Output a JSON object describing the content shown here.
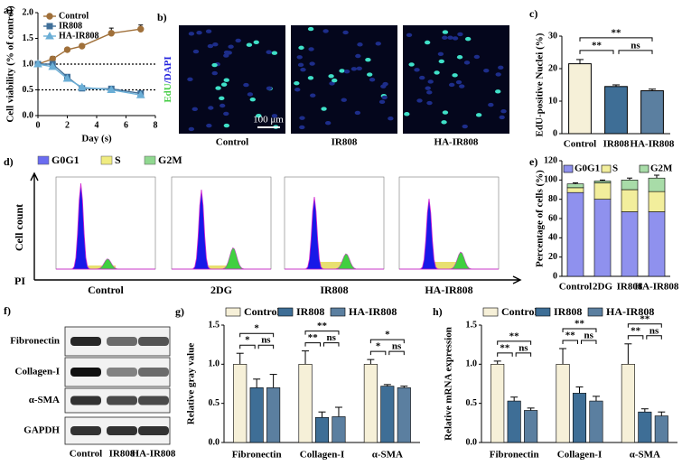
{
  "chart_data": [
    {
      "type": "line",
      "panel": "a)",
      "y_label": "Cell viability (% of control)",
      "x_label": "Day (s)",
      "x": [
        0,
        1,
        2,
        3,
        5,
        7
      ],
      "series": [
        {
          "name": "Control",
          "color": "#a0703a",
          "marker": "circle",
          "values": [
            1.0,
            1.1,
            1.28,
            1.35,
            1.6,
            1.68
          ],
          "errors": [
            0.02,
            0.05,
            0.03,
            0.04,
            0.1,
            0.08
          ]
        },
        {
          "name": "IR808",
          "color": "#3f6f99",
          "marker": "square",
          "values": [
            1.0,
            1.0,
            0.75,
            0.53,
            0.52,
            0.43
          ],
          "errors": [
            0.02,
            0.03,
            0.03,
            0.03,
            0.04,
            0.03
          ]
        },
        {
          "name": "HA-IR808",
          "color": "#6aaed6",
          "marker": "triangle",
          "values": [
            1.0,
            0.95,
            0.72,
            0.55,
            0.5,
            0.4
          ],
          "errors": [
            0.02,
            0.04,
            0.04,
            0.04,
            0.05,
            0.03
          ]
        }
      ],
      "xlim": [
        0,
        8
      ],
      "xticks": [
        0,
        2,
        4,
        6,
        8
      ],
      "ylim": [
        0,
        2
      ],
      "yticks": [
        {
          "value": 0,
          "label": "0.0"
        },
        {
          "value": 0.5,
          "label": "0.5"
        },
        {
          "value": 1,
          "label": "1.0"
        },
        {
          "value": 1.5,
          "label": "1.5"
        },
        {
          "value": 2,
          "label": "2.0"
        }
      ],
      "reference_lines": [
        1.0,
        0.5
      ]
    },
    {
      "type": "bar",
      "panel": "c)",
      "y_label": "EdU-positive Nuclei (%)",
      "categories": [
        "Control",
        "IR808",
        "HA-IR808"
      ],
      "values": [
        21.5,
        14.5,
        13.2
      ],
      "errors": [
        1.3,
        0.5,
        0.5
      ],
      "colors": [
        "#f6f0d8",
        "#3e6e96",
        "#5b7fa0"
      ],
      "ylim": [
        0,
        30
      ],
      "yticks": [
        0,
        10,
        20,
        30
      ],
      "significance": [
        "**",
        "**",
        "ns"
      ]
    },
    {
      "type": "stacked_bar",
      "panel": "e)",
      "y_label": "Percentage of cells (%)",
      "categories": [
        "Control",
        "2DG",
        "IR808",
        "HA-IR808"
      ],
      "series": [
        {
          "name": "G0G1",
          "color": "#8f91ee",
          "values": [
            87,
            80,
            67,
            67
          ],
          "errors": [
            4,
            2,
            6,
            5
          ]
        },
        {
          "name": "S",
          "color": "#f2ee9c",
          "values": [
            5,
            17,
            23,
            21
          ],
          "errors": [
            2,
            1,
            4,
            4
          ]
        },
        {
          "name": "G2M",
          "color": "#a8dca8",
          "values": [
            4,
            2,
            10,
            14
          ],
          "errors": [
            1,
            1,
            2,
            3
          ]
        }
      ],
      "ylim": [
        0,
        120
      ],
      "yticks": [
        0,
        20,
        40,
        60,
        80,
        100,
        120
      ]
    },
    {
      "type": "grouped_bar",
      "panel": "g)",
      "y_label": "Relative gray value",
      "categories": [
        "Fibronectin",
        "Collagen-I",
        "α-SMA"
      ],
      "series": [
        {
          "name": "Control",
          "color": "#f6f0d8",
          "values": [
            1.0,
            1.0,
            1.0
          ],
          "errors": [
            0.14,
            0.17,
            0.06
          ]
        },
        {
          "name": "IR808",
          "color": "#3e6e96",
          "values": [
            0.7,
            0.32,
            0.72
          ],
          "errors": [
            0.11,
            0.07,
            0.02
          ]
        },
        {
          "name": "HA-IR808",
          "color": "#5b7fa0",
          "values": [
            0.7,
            0.33,
            0.7
          ],
          "errors": [
            0.17,
            0.12,
            0.02
          ]
        }
      ],
      "ylim": [
        0,
        1.5
      ],
      "yticks": [
        {
          "value": 0,
          "label": "0.0"
        },
        {
          "value": 0.5,
          "label": "0.5"
        },
        {
          "value": 1,
          "label": "1.0"
        },
        {
          "value": 1.5,
          "label": "1.5"
        }
      ],
      "significance": [
        [
          "*",
          "*",
          "ns"
        ],
        [
          "**",
          "**",
          "ns"
        ],
        [
          "*",
          "*",
          "ns"
        ]
      ]
    },
    {
      "type": "grouped_bar",
      "panel": "h)",
      "y_label": "Relative mRNA expression",
      "categories": [
        "Fibronectin",
        "Collagen-I",
        "α-SMA"
      ],
      "series": [
        {
          "name": "Control",
          "color": "#f6f0d8",
          "values": [
            1.0,
            1.0,
            1.0
          ],
          "errors": [
            0.04,
            0.2,
            0.26
          ]
        },
        {
          "name": "IR808",
          "color": "#3e6e96",
          "values": [
            0.53,
            0.63,
            0.39
          ],
          "errors": [
            0.05,
            0.08,
            0.04
          ]
        },
        {
          "name": "HA-IR808",
          "color": "#5b7fa0",
          "values": [
            0.41,
            0.53,
            0.34
          ],
          "errors": [
            0.03,
            0.06,
            0.05
          ]
        }
      ],
      "ylim": [
        0,
        1.5
      ],
      "yticks": [
        {
          "value": 0,
          "label": "0.0"
        },
        {
          "value": 0.5,
          "label": "0.5"
        },
        {
          "value": 1,
          "label": "1.0"
        },
        {
          "value": 1.5,
          "label": "1.5"
        }
      ],
      "significance": [
        [
          "**",
          "**",
          "ns"
        ],
        [
          "**",
          "**",
          "ns"
        ],
        [
          "**",
          "**",
          "ns"
        ]
      ]
    }
  ],
  "microscopy": {
    "panel": "b)",
    "stain": [
      "EdU",
      "/DAPI"
    ],
    "scale_bar": "100 μm",
    "labels": [
      "Control",
      "IR808",
      "HA-IR808"
    ]
  },
  "flow_cytometry": {
    "panel": "d)",
    "y_label": "Cell count",
    "x_label": "PI",
    "legend": [
      {
        "name": "G0G1",
        "color": "#6a6cf0"
      },
      {
        "name": "S",
        "color": "#f0ec80"
      },
      {
        "name": "G2M",
        "color": "#90d890"
      }
    ],
    "labels": [
      "Control",
      "2DG",
      "IR808",
      "HA-IR808"
    ]
  },
  "western_blot": {
    "panel": "f)",
    "proteins": [
      "Fibronectin",
      "Collagen-I",
      "α-SMA",
      "GAPDH"
    ],
    "lanes": [
      "Control",
      "IR808",
      "HA-IR808"
    ]
  }
}
